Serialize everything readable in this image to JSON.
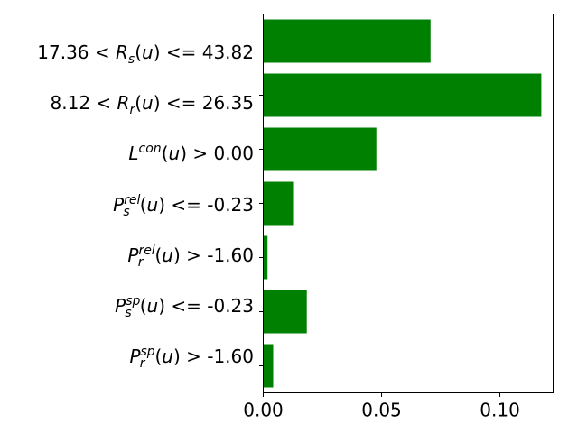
{
  "chart_data": {
    "type": "bar",
    "orientation": "horizontal",
    "categories": [
      {
        "id": "rs",
        "text": "17.36 < R_s(u) <= 43.82",
        "value": 0.0707
      },
      {
        "id": "rr",
        "text": "8.12 < R_r(u) <= 26.35",
        "value": 0.1175
      },
      {
        "id": "lcon",
        "text": "L^con(u) > 0.00",
        "value": 0.0478
      },
      {
        "id": "psrel",
        "text": "P_s^rel(u) <= -0.23",
        "value": 0.0126
      },
      {
        "id": "prrel",
        "text": "P_r^rel(u) > -1.60",
        "value": 0.0018
      },
      {
        "id": "pssp",
        "text": "P_s^sp(u) <= -0.23",
        "value": 0.0184
      },
      {
        "id": "prsp",
        "text": "P_r^sp(u) > -1.60",
        "value": 0.0042
      }
    ],
    "xlim": [
      0.0,
      0.1225
    ],
    "xticks": [
      "0.00",
      "0.05",
      "0.10"
    ],
    "xtick_values": [
      0.0,
      0.05,
      0.1
    ],
    "bar_color": "#008000",
    "title": "",
    "xlabel": "",
    "ylabel": "",
    "grid": false,
    "legend": "none"
  }
}
